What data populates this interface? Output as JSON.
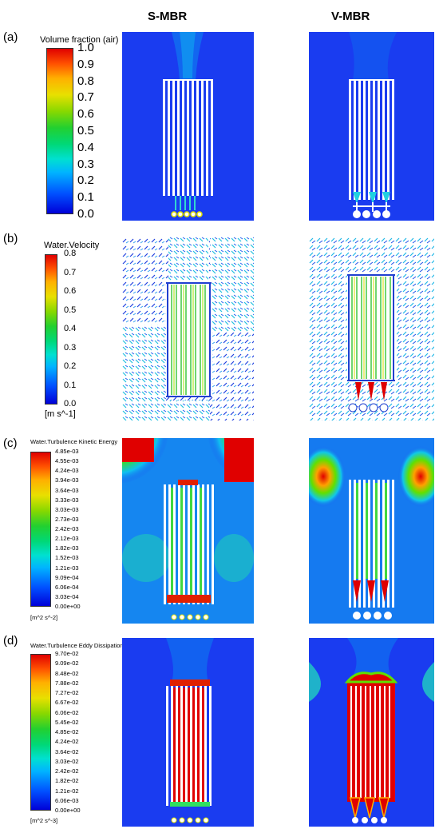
{
  "columns": [
    "S-MBR",
    "V-MBR"
  ],
  "rows": [
    {
      "label": "(a)",
      "legend_title": "Volume fraction (air)",
      "ticks": [
        "1.0",
        "0.9",
        "0.8",
        "0.7",
        "0.6",
        "0.5",
        "0.4",
        "0.3",
        "0.2",
        "0.1",
        "0.0"
      ],
      "unit": ""
    },
    {
      "label": "(b)",
      "legend_title": "Water.Velocity",
      "ticks": [
        "0.8",
        "0.7",
        "0.6",
        "0.5",
        "0.4",
        "0.3",
        "0.2",
        "0.1",
        "0.0"
      ],
      "unit": "[m s^-1]"
    },
    {
      "label": "(c)",
      "legend_title": "Water.Turbulence Kinetic Energy",
      "ticks": [
        "4.85e-03",
        "4.55e-03",
        "4.24e-03",
        "3.94e-03",
        "3.64e-03",
        "3.33e-03",
        "3.03e-03",
        "2.73e-03",
        "2.42e-03",
        "2.12e-03",
        "1.82e-03",
        "1.52e-03",
        "1.21e-03",
        "9.09e-04",
        "6.06e-04",
        "3.03e-04",
        "0.00e+00"
      ],
      "unit": "[m^2 s^-2]"
    },
    {
      "label": "(d)",
      "legend_title": "Water.Turbulence Eddy Dissipation",
      "ticks": [
        "9.70e-02",
        "9.09e-02",
        "8.48e-02",
        "7.88e-02",
        "7.27e-02",
        "6.67e-02",
        "6.06e-02",
        "5.45e-02",
        "4.85e-02",
        "4.24e-02",
        "3.64e-02",
        "3.03e-02",
        "2.42e-02",
        "1.82e-02",
        "1.21e-02",
        "6.06e-03",
        "0.00e+00"
      ],
      "unit": "[m^2 s^-3]"
    }
  ],
  "colors": {
    "background_blue": "#1a3cf0",
    "high_red": "#e00000"
  }
}
